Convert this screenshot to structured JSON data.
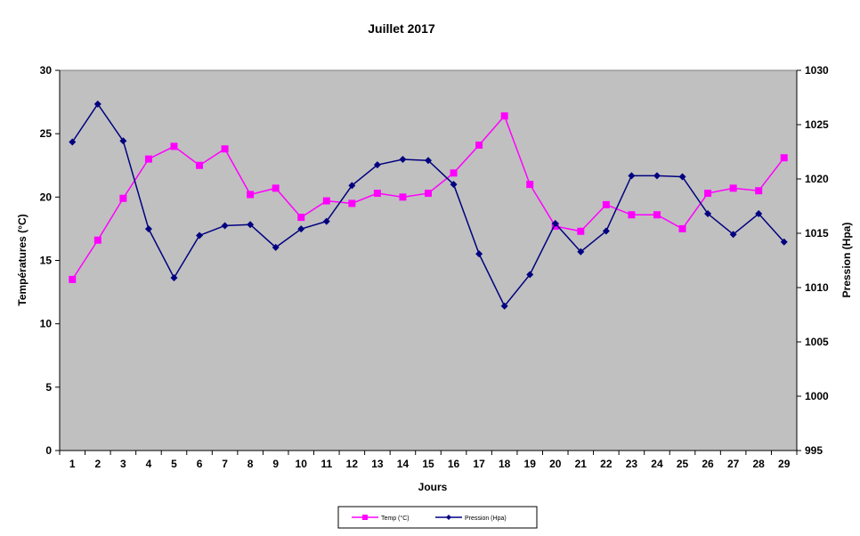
{
  "chart_data": {
    "type": "line",
    "title": "Juillet 2017",
    "xlabel": "Jours",
    "ylabel_left": "Températures (°C)",
    "ylabel_right": "Pression (Hpa)",
    "categories": [
      "1",
      "2",
      "3",
      "4",
      "5",
      "6",
      "7",
      "8",
      "9",
      "10",
      "11",
      "12",
      "13",
      "14",
      "15",
      "16",
      "17",
      "18",
      "19",
      "20",
      "21",
      "22",
      "23",
      "24",
      "25",
      "26",
      "27",
      "28",
      "29"
    ],
    "ylim_left": [
      0,
      30
    ],
    "yticks_left": [
      0,
      5,
      10,
      15,
      20,
      25,
      30
    ],
    "ylim_right": [
      995,
      1030
    ],
    "yticks_right": [
      995,
      1000,
      1005,
      1010,
      1015,
      1020,
      1025,
      1030
    ],
    "grid": false,
    "legend_position": "bottom",
    "plot_background": "#C0C0C0",
    "series": [
      {
        "name": "Temp (°C)",
        "axis": "left",
        "color": "#FF00FF",
        "marker": "square",
        "values": [
          13.5,
          16.6,
          19.9,
          23.0,
          24.0,
          22.5,
          23.8,
          20.2,
          20.7,
          18.4,
          19.7,
          19.5,
          20.3,
          20.0,
          20.3,
          21.9,
          24.1,
          26.4,
          21.0,
          17.7,
          17.3,
          19.4,
          18.6,
          18.6,
          17.5,
          20.3,
          20.7,
          20.5,
          23.1
        ]
      },
      {
        "name": "Pression (Hpa)",
        "axis": "right",
        "color": "#000080",
        "marker": "diamond",
        "values": [
          1023.4,
          1026.9,
          1023.5,
          1015.4,
          1010.9,
          1014.8,
          1015.7,
          1015.8,
          1013.7,
          1015.4,
          1016.1,
          1019.4,
          1021.3,
          1021.8,
          1021.7,
          1019.5,
          1013.1,
          1008.3,
          1011.2,
          1015.9,
          1013.3,
          1015.2,
          1020.3,
          1020.3,
          1020.2,
          1016.8,
          1014.9,
          1016.8,
          1014.2
        ]
      }
    ]
  }
}
